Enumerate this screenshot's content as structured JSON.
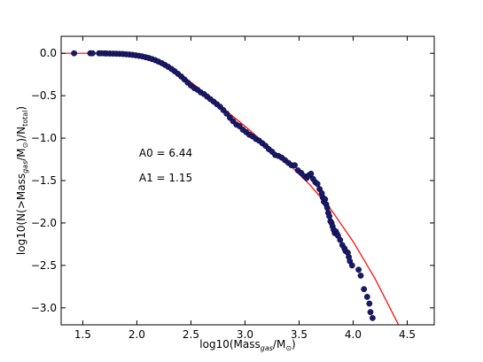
{
  "chart_data": {
    "type": "scatter",
    "title": "",
    "xlabel": {
      "prefix": "log10(Mass",
      "sub1": "gas",
      "mid": "/M",
      "sub2": "⊙",
      "suffix": ")"
    },
    "ylabel": {
      "prefix": "log10(N(>Mass",
      "sub1": "gas",
      "mid": "/M",
      "sub2": "⊙",
      "mid2": ")/N",
      "sub3": "total",
      "suffix": ")"
    },
    "xlim": [
      1.3,
      4.75
    ],
    "ylim": [
      -3.2,
      0.2
    ],
    "xticks": [
      "1.5",
      "2.0",
      "2.5",
      "3.0",
      "3.5",
      "4.0",
      "4.5"
    ],
    "yticks": [
      "0.0",
      "−0.5",
      "−1.0",
      "−1.5",
      "−2.0",
      "−2.5",
      "−3.0"
    ],
    "annotations": [
      "A0 = 6.44",
      "A1 = 1.15"
    ],
    "annotation_anchor": [
      2.02,
      -1.22
    ],
    "colors": {
      "points": "#191970",
      "fit": "#ff0000",
      "axes": "#000000"
    },
    "fit": {
      "name": "",
      "A0": 6.44,
      "A1": 1.15,
      "relation": "y = -(x/A1)^A0 ... fitted curve"
    },
    "series": [
      {
        "name": "",
        "x": [
          1.42,
          1.57,
          1.59,
          1.65,
          1.67,
          1.7,
          1.72,
          1.75,
          1.78,
          1.81,
          1.84,
          1.87,
          1.9,
          1.93,
          1.96,
          1.99,
          2.02,
          2.05,
          2.08,
          2.11,
          2.14,
          2.17,
          2.2,
          2.23,
          2.26,
          2.29,
          2.32,
          2.35,
          2.38,
          2.41,
          2.44,
          2.47,
          2.5,
          2.53,
          2.56,
          2.59,
          2.62,
          2.65,
          2.68,
          2.71,
          2.74,
          2.77,
          2.8,
          2.83,
          2.86,
          2.89,
          2.92,
          2.95,
          2.98,
          3.01,
          3.04,
          3.07,
          3.1,
          3.13,
          3.16,
          3.19,
          3.22,
          3.25,
          3.28,
          3.31,
          3.34,
          3.37,
          3.4,
          3.43,
          3.46,
          3.49,
          3.52,
          3.55,
          3.57,
          3.59,
          3.61,
          3.63,
          3.65,
          3.67,
          3.69,
          3.71,
          3.72,
          3.73,
          3.74,
          3.75,
          3.76,
          3.77,
          3.78,
          3.79,
          3.8,
          3.81,
          3.82,
          3.83,
          3.84,
          3.85,
          3.86,
          3.88,
          3.9,
          3.92,
          3.93,
          3.95,
          3.96,
          3.97,
          3.99,
          4.05,
          4.07,
          4.1,
          4.13,
          4.15,
          4.16,
          4.18
        ],
        "y": [
          0.0,
          0.0,
          0.0,
          0.0,
          0.0,
          -0.001,
          -0.002,
          -0.003,
          -0.004,
          -0.005,
          -0.007,
          -0.009,
          -0.012,
          -0.015,
          -0.019,
          -0.024,
          -0.03,
          -0.037,
          -0.046,
          -0.056,
          -0.068,
          -0.082,
          -0.098,
          -0.116,
          -0.137,
          -0.16,
          -0.185,
          -0.212,
          -0.242,
          -0.274,
          -0.308,
          -0.345,
          -0.38,
          -0.41,
          -0.43,
          -0.46,
          -0.48,
          -0.51,
          -0.54,
          -0.57,
          -0.6,
          -0.63,
          -0.67,
          -0.71,
          -0.76,
          -0.8,
          -0.84,
          -0.86,
          -0.9,
          -0.93,
          -0.96,
          -0.98,
          -1.01,
          -1.03,
          -1.06,
          -1.09,
          -1.13,
          -1.16,
          -1.2,
          -1.21,
          -1.23,
          -1.26,
          -1.29,
          -1.32,
          -1.32,
          -1.38,
          -1.41,
          -1.45,
          -1.47,
          -1.44,
          -1.42,
          -1.48,
          -1.52,
          -1.54,
          -1.6,
          -1.65,
          -1.7,
          -1.75,
          -1.72,
          -1.78,
          -1.82,
          -1.88,
          -1.92,
          -1.98,
          -2.0,
          -2.04,
          -2.08,
          -2.12,
          -2.1,
          -2.13,
          -2.15,
          -2.2,
          -2.26,
          -2.3,
          -2.33,
          -2.35,
          -2.4,
          -2.45,
          -2.5,
          -2.55,
          -2.62,
          -2.78,
          -2.87,
          -2.95,
          -3.05,
          -3.12
        ]
      }
    ]
  }
}
